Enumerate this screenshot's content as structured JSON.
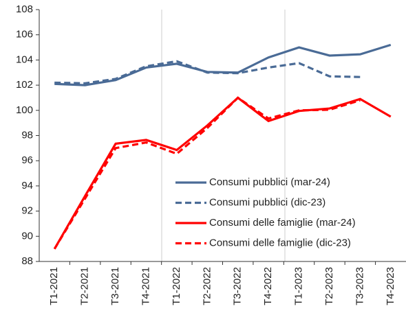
{
  "chart_data": {
    "type": "line",
    "categories": [
      "T1-2021",
      "T2-2021",
      "T3-2021",
      "T4-2021",
      "T1-2022",
      "T2-2022",
      "T3-2022",
      "T4-2022",
      "T1-2023",
      "T2-2023",
      "T3-2023",
      "T4-2023"
    ],
    "series": [
      {
        "name": "Consumi pubblici (mar-24)",
        "color": "#4a6b96",
        "dash": false,
        "values": [
          102.1,
          102.0,
          102.4,
          103.4,
          103.7,
          103.05,
          103.0,
          104.2,
          105.0,
          104.35,
          104.45,
          105.2
        ]
      },
      {
        "name": "Consumi pubblici (dic-23)",
        "color": "#4a6b96",
        "dash": true,
        "values": [
          102.2,
          102.15,
          102.5,
          103.5,
          103.9,
          103.0,
          102.95,
          103.4,
          103.75,
          102.7,
          102.65,
          null
        ]
      },
      {
        "name": "Consumi delle famiglie (mar-24)",
        "color": "#ff0000",
        "dash": false,
        "values": [
          89.0,
          93.2,
          97.35,
          97.65,
          96.85,
          98.8,
          101.0,
          99.15,
          99.95,
          100.15,
          100.9,
          99.5
        ]
      },
      {
        "name": "Consumi delle famiglie (dic-23)",
        "color": "#ff0000",
        "dash": true,
        "values": [
          89.0,
          93.0,
          97.0,
          97.45,
          96.55,
          98.6,
          101.0,
          99.35,
          100.0,
          100.05,
          100.8,
          null
        ]
      }
    ],
    "ylim": [
      88,
      108
    ],
    "yticks": [
      88,
      90,
      92,
      94,
      96,
      98,
      100,
      102,
      104,
      106,
      108
    ],
    "grid": false
  }
}
